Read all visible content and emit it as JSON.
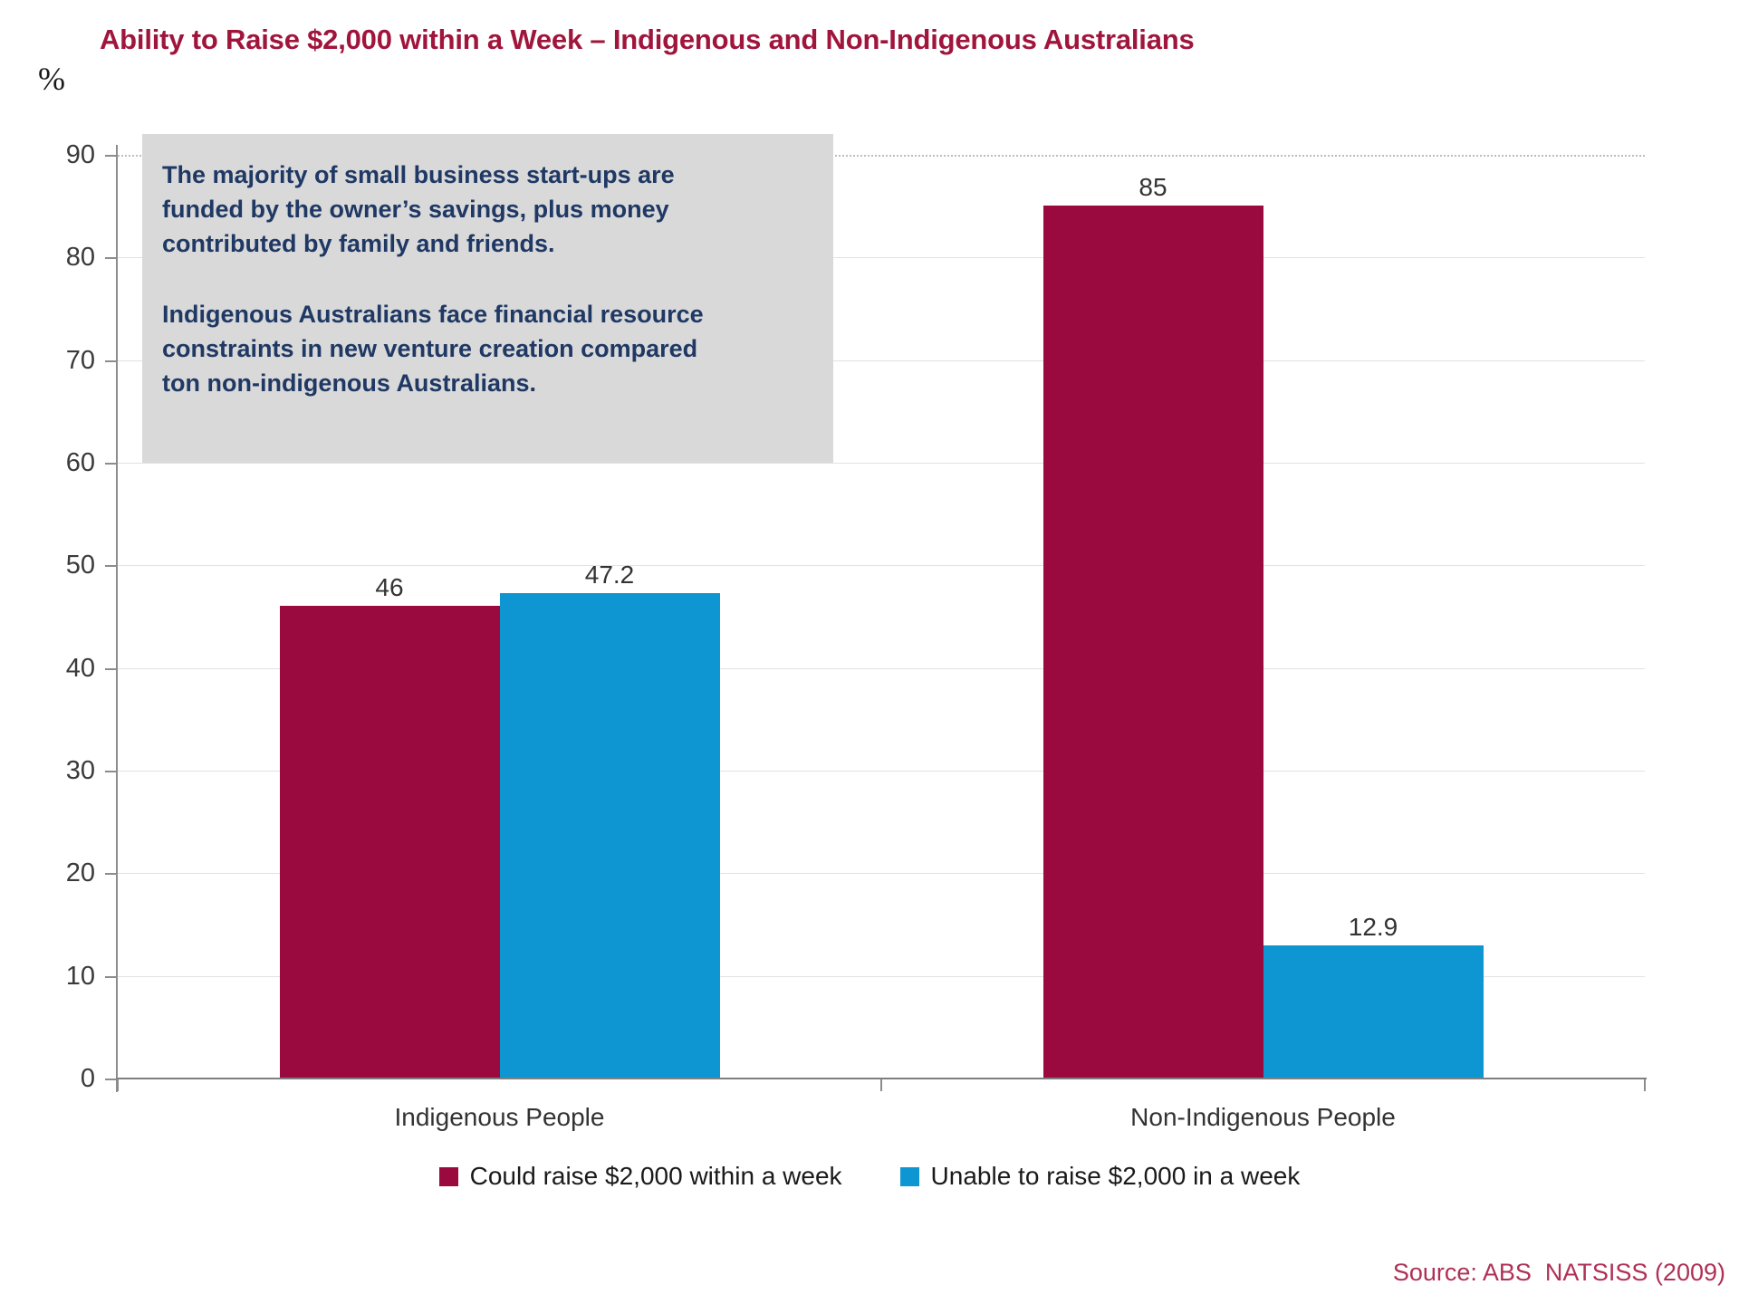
{
  "title": "Ability to Raise $2,000 within a Week – Indigenous and Non-Indigenous Australians",
  "y_axis_unit": "%",
  "annotation": {
    "paragraphs": [
      [
        "The majority of small business start-ups are",
        "funded by the owner’s savings, plus money",
        "contributed by family and friends."
      ],
      [
        "Indigenous Australians face financial resource",
        "constraints in new venture creation compared",
        "ton non-indigenous Australians."
      ]
    ]
  },
  "source": "Source: ABS  NATSISS (2009)",
  "colors": {
    "title_red": "#A0153C",
    "bar_red": "#9B0A3E",
    "bar_blue": "#0E96D2",
    "annotation_navy": "#1F3864",
    "annotation_bg": "#D9D9D9",
    "source_red": "#B03057",
    "gridline": "#e2e2e2",
    "axis": "#7f7f7f"
  },
  "chart_data": {
    "type": "bar",
    "title": "Ability to Raise $2,000 within a Week – Indigenous and Non-Indigenous Australians",
    "categories": [
      "Indigenous People",
      "Non-Indigenous People"
    ],
    "series": [
      {
        "name": "Could raise $2,000 within a week",
        "color": "#9B0A3E",
        "values": [
          46,
          85
        ]
      },
      {
        "name": "Unable to raise $2,000 in a week",
        "color": "#0E96D2",
        "values": [
          47.2,
          12.9
        ]
      }
    ],
    "value_labels": {
      "Indigenous People": [
        "46",
        "47.2"
      ],
      "Non-Indigenous People": [
        "85",
        "12.9"
      ]
    },
    "xlabel": "",
    "ylabel": "%",
    "ylim": [
      0,
      90
    ],
    "ytick_step": 10,
    "grid": true,
    "legend_position": "bottom"
  }
}
